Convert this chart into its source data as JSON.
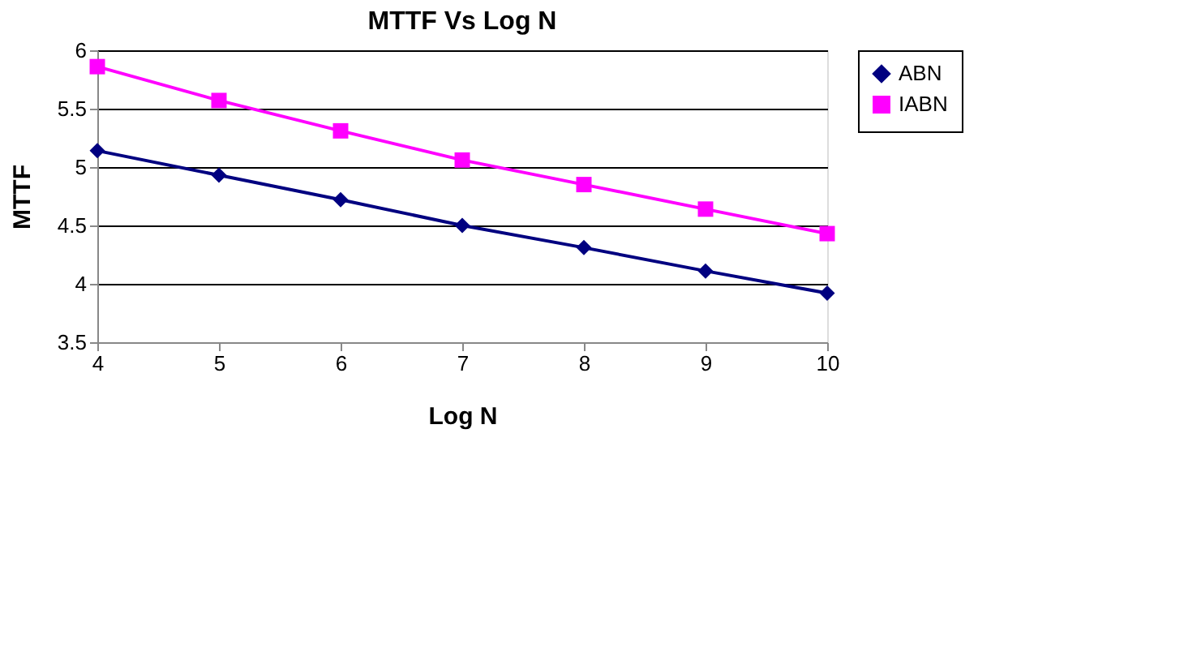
{
  "chart_data": {
    "type": "line",
    "title": "MTTF Vs Log N",
    "xlabel": "Log N",
    "ylabel": "MTTF",
    "x": [
      4,
      5,
      6,
      7,
      8,
      9,
      10
    ],
    "series": [
      {
        "name": "ABN",
        "color": "#000080",
        "marker": "diamond",
        "values": [
          5.14,
          4.93,
          4.72,
          4.5,
          4.31,
          4.11,
          3.92
        ]
      },
      {
        "name": "IABN",
        "color": "#ff00ff",
        "marker": "square",
        "values": [
          5.86,
          5.57,
          5.31,
          5.06,
          4.85,
          4.64,
          4.43
        ]
      }
    ],
    "xlim": [
      4,
      10
    ],
    "xticks": [
      4,
      5,
      6,
      7,
      8,
      9,
      10
    ],
    "ylim": [
      3.5,
      6
    ],
    "yticks": [
      3.5,
      4,
      4.5,
      5,
      5.5,
      6
    ],
    "grid": "y",
    "legend": "right",
    "line_style": "solid"
  }
}
